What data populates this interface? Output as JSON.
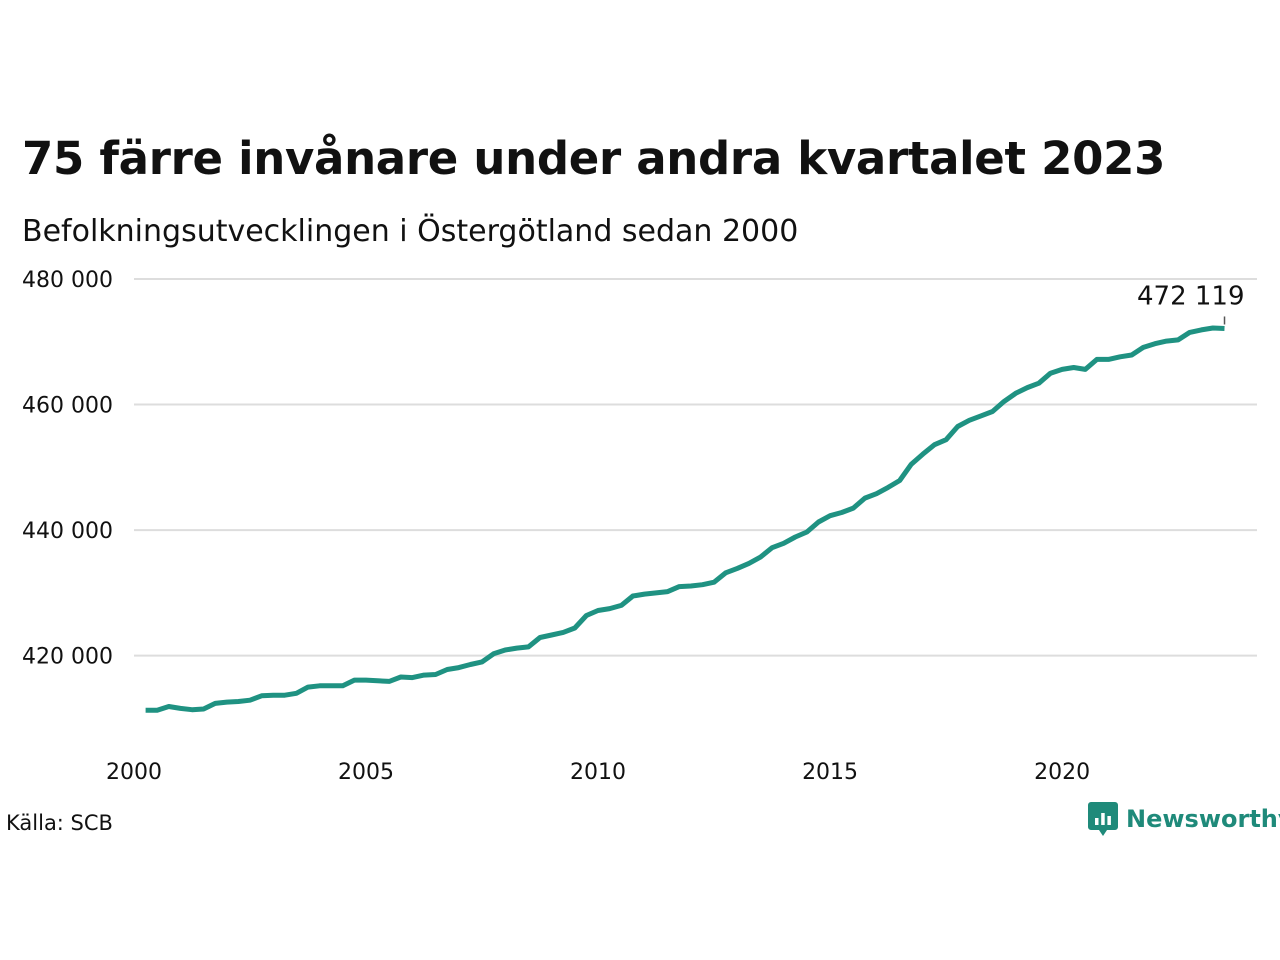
{
  "header": {
    "title": "75 färre invånare under andra kvartalet 2023",
    "subtitle": "Befolkningsutvecklingen i Östergötland sedan 2000"
  },
  "footer": {
    "source": "Källa: SCB",
    "brand": "Newsworthy",
    "brand_icon": "chart-bubble-icon"
  },
  "colors": {
    "line": "#1f9282",
    "grid": "#dddddd",
    "text": "#111111",
    "brand": "#1f8a7a"
  },
  "chart_data": {
    "type": "line",
    "title": "75 färre invånare under andra kvartalet 2023",
    "subtitle": "Befolkningsutvecklingen i Östergötland sedan 2000",
    "xlabel": "",
    "ylabel": "",
    "xlim": [
      2000,
      2024.2
    ],
    "ylim": [
      408000,
      480000
    ],
    "grid": true,
    "x_ticks": [
      2000,
      2005,
      2010,
      2015,
      2020
    ],
    "y_ticks": [
      420000,
      440000,
      460000,
      480000
    ],
    "y_tick_labels": [
      "420 000",
      "440 000",
      "460 000",
      "480 000"
    ],
    "annotation": {
      "text": "472 119",
      "x": 2023.5,
      "y": 472119
    },
    "series": [
      {
        "x": [
          2000.25,
          2000.5,
          2000.75,
          2001.0,
          2001.25,
          2001.5,
          2001.75,
          2002.0,
          2002.25,
          2002.5,
          2002.75,
          2003.0,
          2003.25,
          2003.5,
          2003.75,
          2004.0,
          2004.25,
          2004.5,
          2004.75,
          2005.0,
          2005.25,
          2005.5,
          2005.75,
          2006.0,
          2006.25,
          2006.5,
          2006.75,
          2007.0,
          2007.25,
          2007.5,
          2007.75,
          2008.0,
          2008.25,
          2008.5,
          2008.75,
          2009.0,
          2009.25,
          2009.5,
          2009.75,
          2010.0,
          2010.25,
          2010.5,
          2010.75,
          2011.0,
          2011.25,
          2011.5,
          2011.75,
          2012.0,
          2012.25,
          2012.5,
          2012.75,
          2013.0,
          2013.25,
          2013.5,
          2013.75,
          2014.0,
          2014.25,
          2014.5,
          2014.75,
          2015.0,
          2015.25,
          2015.5,
          2015.75,
          2016.0,
          2016.25,
          2016.5,
          2016.75,
          2017.0,
          2017.25,
          2017.5,
          2017.75,
          2018.0,
          2018.25,
          2018.5,
          2018.75,
          2019.0,
          2019.25,
          2019.5,
          2019.75,
          2020.0,
          2020.25,
          2020.5,
          2020.75,
          2021.0,
          2021.25,
          2021.5,
          2021.75,
          2022.0,
          2022.25,
          2022.5,
          2022.75,
          2023.0,
          2023.25,
          2023.5
        ],
        "values": [
          411300,
          411300,
          411900,
          411600,
          411400,
          411500,
          412400,
          412600,
          412700,
          412900,
          413600,
          413700,
          413700,
          414000,
          415000,
          415200,
          415200,
          415200,
          416100,
          416100,
          416000,
          415900,
          416600,
          416500,
          416900,
          417000,
          417800,
          418100,
          418600,
          419000,
          420300,
          420900,
          421200,
          421400,
          422900,
          423300,
          423700,
          424400,
          426400,
          427200,
          427500,
          428000,
          429500,
          429800,
          430000,
          430200,
          431000,
          431100,
          431300,
          431700,
          433200,
          433900,
          434700,
          435700,
          437200,
          437900,
          438900,
          439700,
          441300,
          442300,
          442800,
          443500,
          445100,
          445800,
          446800,
          447900,
          450500,
          452100,
          453600,
          454400,
          456500,
          457500,
          458200,
          458900,
          460500,
          461800,
          462700,
          463400,
          465000,
          465600,
          465900,
          465600,
          467200,
          467200,
          467600,
          467900,
          469100,
          469700,
          470100,
          470300,
          471500,
          471900,
          472194,
          472119
        ]
      }
    ]
  }
}
